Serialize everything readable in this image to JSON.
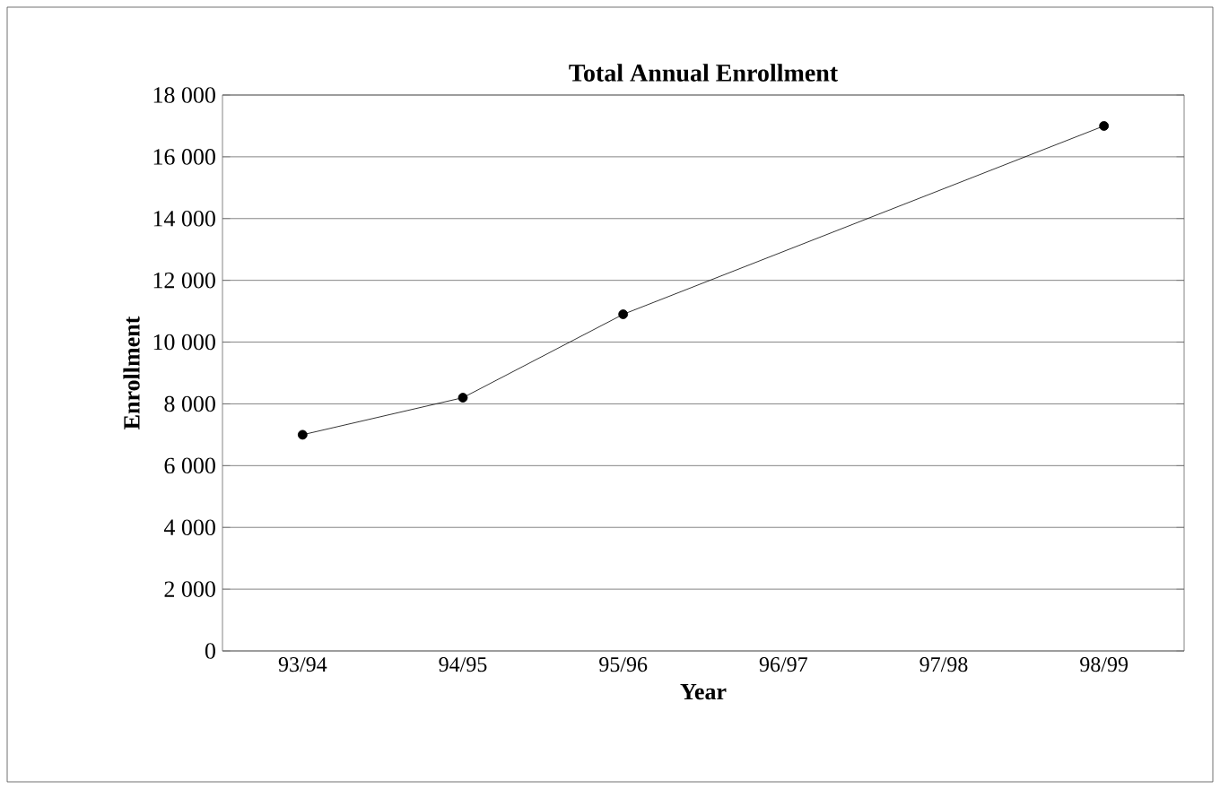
{
  "chart_data": {
    "type": "line",
    "title": "Total Annual Enrollment",
    "xlabel": "Year",
    "ylabel": "Enrollment",
    "categories": [
      "93/94",
      "94/95",
      "95/96",
      "96/97",
      "97/98",
      "98/99"
    ],
    "values": [
      7000,
      8200,
      10900,
      null,
      null,
      17000
    ],
    "color": "#000000",
    "marker": "circle",
    "line_style": "solid",
    "grid": "y",
    "ylim": [
      0,
      18000
    ],
    "yticks": [
      0,
      {
        "value": 2000,
        "label": "2 000"
      },
      {
        "value": 4000,
        "label": "4 000"
      },
      {
        "value": 6000,
        "label": "6 000"
      },
      {
        "value": 8000,
        "label": "8 000"
      },
      {
        "value": 10000,
        "label": "10 000"
      },
      {
        "value": 12000,
        "label": "12 000"
      },
      {
        "value": 14000,
        "label": "14 000"
      },
      {
        "value": 16000,
        "label": "16 000"
      },
      {
        "value": 18000,
        "label": "18 000"
      }
    ]
  }
}
